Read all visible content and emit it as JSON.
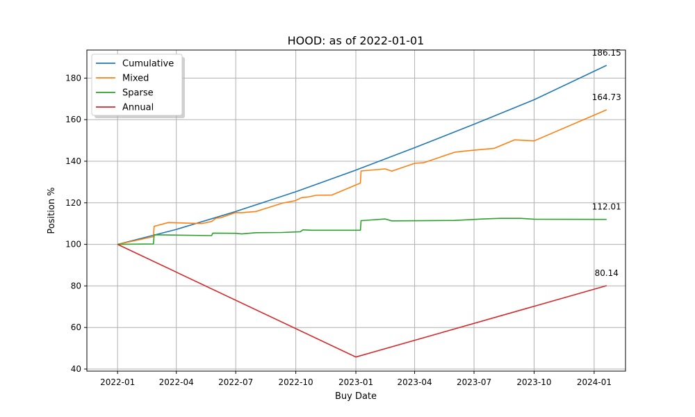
{
  "chart_data": {
    "type": "line",
    "title": "HOOD: as of 2022-01-01",
    "xlabel": "Buy Date",
    "ylabel": "Position %",
    "xlim": [
      "2021-11-15",
      "2024-02-18"
    ],
    "ylim": [
      39,
      193.5
    ],
    "x_ticks": [
      "2022-01",
      "2022-04",
      "2022-07",
      "2022-10",
      "2023-01",
      "2023-04",
      "2023-07",
      "2023-10",
      "2024-01"
    ],
    "y_ticks": [
      40,
      60,
      80,
      100,
      120,
      140,
      160,
      180
    ],
    "grid": true,
    "legend_position": "top-left",
    "series": [
      {
        "name": "Cumulative",
        "color": "#1f77b4",
        "points": [
          [
            "2022-01-01",
            100
          ],
          [
            "2022-04-01",
            107.2
          ],
          [
            "2022-07-01",
            115.8
          ],
          [
            "2022-10-01",
            125.3
          ],
          [
            "2023-01-01",
            135.7
          ],
          [
            "2023-04-01",
            146.5
          ],
          [
            "2023-07-01",
            157.8
          ],
          [
            "2023-10-01",
            169.6
          ],
          [
            "2024-01-20",
            186.15
          ]
        ],
        "end_label": "186.15"
      },
      {
        "name": "Mixed",
        "color": "#ff7f0e",
        "points": [
          [
            "2022-01-01",
            100
          ],
          [
            "2022-02-25",
            103.7
          ],
          [
            "2022-02-26",
            108.7
          ],
          [
            "2022-03-20",
            110.5
          ],
          [
            "2022-05-10",
            110
          ],
          [
            "2022-05-25",
            111
          ],
          [
            "2022-06-01",
            112.6
          ],
          [
            "2022-06-08",
            112.8
          ],
          [
            "2022-07-01",
            115.3
          ],
          [
            "2022-07-10",
            115.2
          ],
          [
            "2022-08-01",
            115.8
          ],
          [
            "2022-09-10",
            119.8
          ],
          [
            "2022-09-30",
            121
          ],
          [
            "2022-10-10",
            122.5
          ],
          [
            "2022-10-20",
            122.8
          ],
          [
            "2022-11-01",
            123.6
          ],
          [
            "2022-11-25",
            123.7
          ],
          [
            "2023-01-08",
            129.5
          ],
          [
            "2023-01-09",
            135.3
          ],
          [
            "2023-02-15",
            136.3
          ],
          [
            "2023-02-25",
            135.2
          ],
          [
            "2023-04-01",
            139
          ],
          [
            "2023-04-15",
            139.3
          ],
          [
            "2023-06-01",
            144.3
          ],
          [
            "2023-06-15",
            144.8
          ],
          [
            "2023-07-01",
            145.3
          ],
          [
            "2023-08-01",
            146.2
          ],
          [
            "2023-09-01",
            150.3
          ],
          [
            "2023-10-01",
            149.8
          ],
          [
            "2024-01-20",
            164.73
          ]
        ],
        "end_label": "164.73"
      },
      {
        "name": "Sparse",
        "color": "#2ca02c",
        "points": [
          [
            "2022-01-01",
            100
          ],
          [
            "2022-02-25",
            100.2
          ],
          [
            "2022-02-26",
            104.6
          ],
          [
            "2022-05-25",
            104.2
          ],
          [
            "2022-05-27",
            105.4
          ],
          [
            "2022-07-01",
            105.3
          ],
          [
            "2022-07-10",
            105
          ],
          [
            "2022-08-01",
            105.6
          ],
          [
            "2022-09-10",
            105.7
          ],
          [
            "2022-10-08",
            106.1
          ],
          [
            "2022-10-12",
            107
          ],
          [
            "2022-10-25",
            106.8
          ],
          [
            "2023-01-08",
            106.8
          ],
          [
            "2023-01-09",
            111.4
          ],
          [
            "2023-02-15",
            112.2
          ],
          [
            "2023-02-25",
            111.3
          ],
          [
            "2023-06-01",
            111.5
          ],
          [
            "2023-07-15",
            112.2
          ],
          [
            "2023-08-10",
            112.5
          ],
          [
            "2023-09-10",
            112.5
          ],
          [
            "2023-10-01",
            112.1
          ],
          [
            "2024-01-20",
            112.01
          ]
        ],
        "end_label": "112.01"
      },
      {
        "name": "Annual",
        "color": "#d62728",
        "points": [
          [
            "2022-01-01",
            100
          ],
          [
            "2023-01-01",
            45.8
          ],
          [
            "2024-01-20",
            80.14
          ]
        ],
        "end_label": "80.14"
      }
    ]
  }
}
